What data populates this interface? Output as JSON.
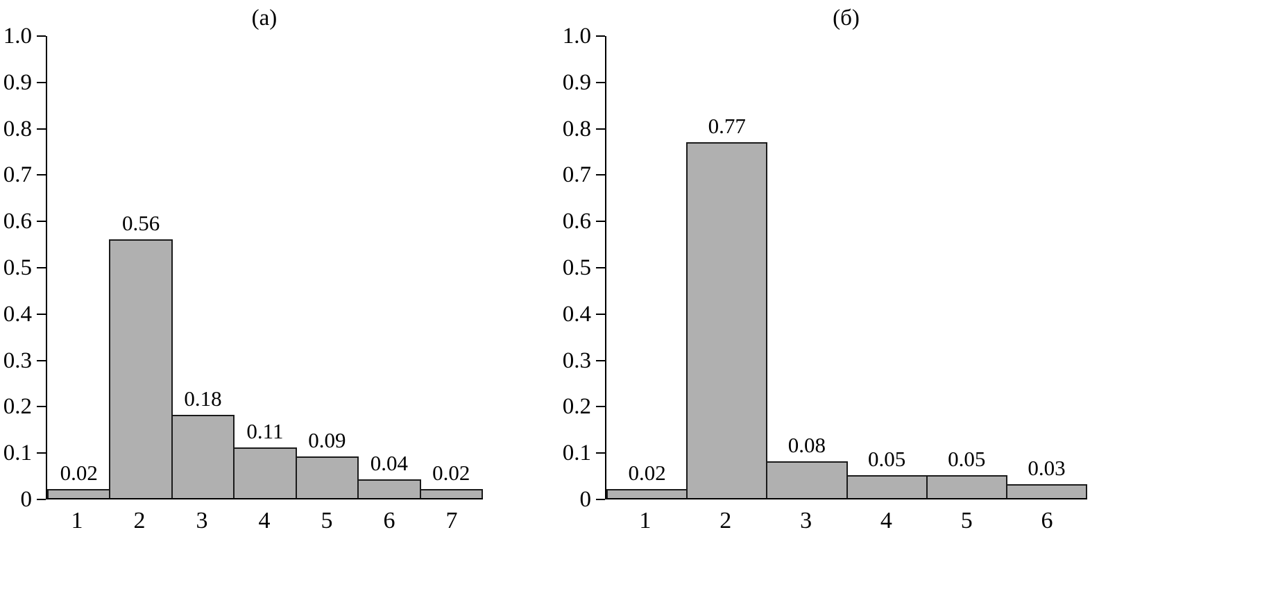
{
  "figure": {
    "background": "#ffffff",
    "axis_color": "#000000"
  },
  "chart_data": [
    {
      "type": "bar",
      "title": "(а)",
      "categories": [
        "1",
        "2",
        "3",
        "4",
        "5",
        "6",
        "7"
      ],
      "values": [
        0.02,
        0.56,
        0.18,
        0.11,
        0.09,
        0.04,
        0.02
      ],
      "data_labels": [
        "0.02",
        "0.56",
        "0.18",
        "0.11",
        "0.09",
        "0.04",
        "0.02"
      ],
      "xlabel": "",
      "ylabel": "",
      "ylim": [
        0,
        1.0
      ],
      "ytick_step": 0.1,
      "ytick_labels": [
        "0",
        "0.1",
        "0.2",
        "0.3",
        "0.4",
        "0.5",
        "0.6",
        "0.7",
        "0.8",
        "0.9",
        "1.0"
      ],
      "grid": false,
      "legend": "none",
      "bar_color": "#b0b0b0",
      "bar_border_color": "#1a1a1a"
    },
    {
      "type": "bar",
      "title": "(б)",
      "categories": [
        "1",
        "2",
        "3",
        "4",
        "5",
        "6"
      ],
      "values": [
        0.02,
        0.77,
        0.08,
        0.05,
        0.05,
        0.03
      ],
      "data_labels": [
        "0.02",
        "0.77",
        "0.08",
        "0.05",
        "0.05",
        "0.03"
      ],
      "xlabel": "",
      "ylabel": "",
      "ylim": [
        0,
        1.0
      ],
      "ytick_step": 0.1,
      "ytick_labels": [
        "0",
        "0.1",
        "0.2",
        "0.3",
        "0.4",
        "0.5",
        "0.6",
        "0.7",
        "0.8",
        "0.9",
        "1.0"
      ],
      "grid": false,
      "legend": "none",
      "bar_color": "#b0b0b0",
      "bar_border_color": "#1a1a1a"
    }
  ]
}
